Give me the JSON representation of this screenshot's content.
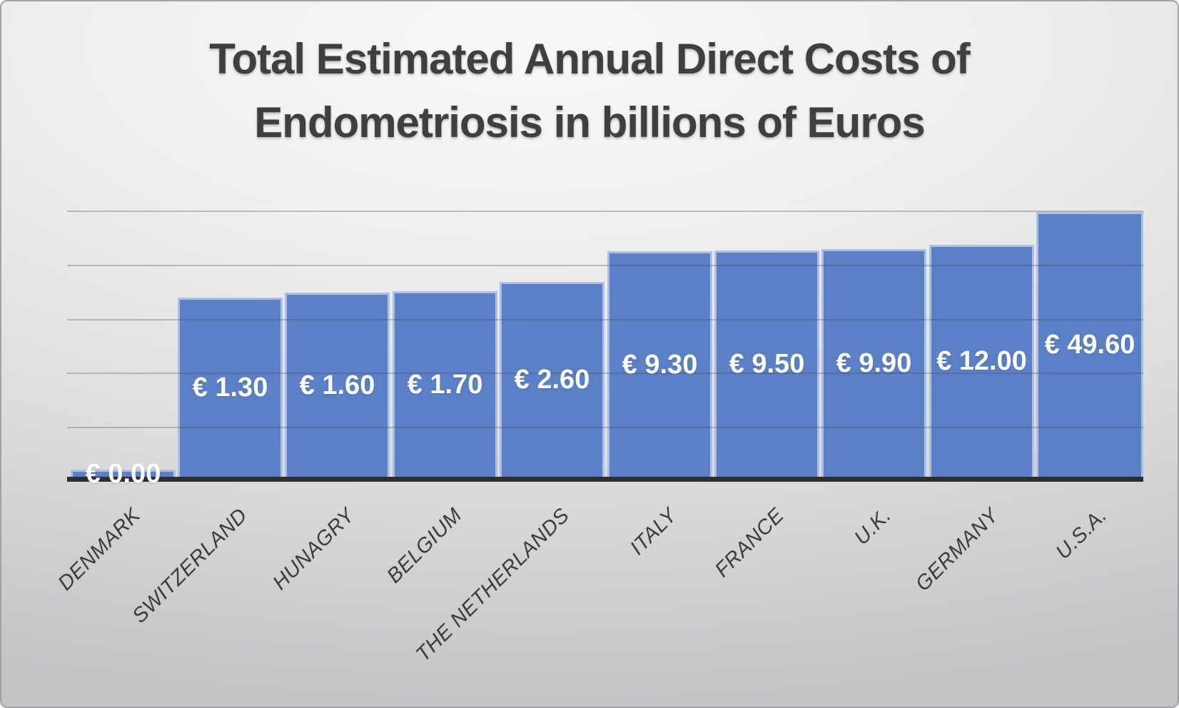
{
  "title": {
    "line1": "Total Estimated Annual Direct Costs of",
    "line2": "Endometriosis in billions of Euros"
  },
  "chart_data": {
    "type": "bar",
    "title": "Total Estimated Annual Direct Costs of Endometriosis in billions of Euros",
    "unit": "billions of Euros",
    "categories": [
      "DENMARK",
      "SWITZERLAND",
      "HUNAGRY",
      "BELGIUM",
      "THE NETHERLANDS",
      "ITALY",
      "FRANCE",
      "U.K.",
      "GERMANY",
      "U.S.A."
    ],
    "values": [
      0.0,
      1.3,
      1.6,
      1.7,
      2.6,
      9.3,
      9.5,
      9.9,
      12.0,
      49.6
    ],
    "value_labels": [
      "€ 0.00",
      "€ 1.30",
      "€ 1.60",
      "€ 1.70",
      "€ 2.60",
      "€ 9.30",
      "€ 9.50",
      "€ 9.90",
      "€ 12.00",
      "€ 49.60"
    ],
    "bar_color": "#5b80c7",
    "value_label_color": "#ffffff",
    "category_label_color": "#3b3b3b",
    "legend": "none",
    "y_axis_tick_labels": "none",
    "horizontal_gridline_count": 5
  }
}
